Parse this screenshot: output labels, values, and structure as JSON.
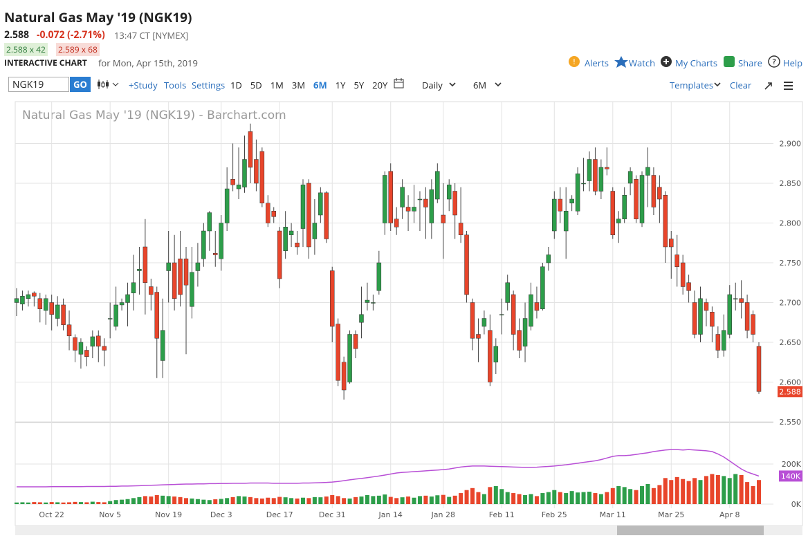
{
  "header": {
    "title": "Natural Gas May '19 (NGK19)",
    "price": "2.588",
    "change": "-0.072 (-2.71%)",
    "time": "13:47 CT [NYMEX]",
    "bid": "2.588 x 42",
    "ask": "2.589 x 68",
    "chart_label": "INTERACTIVE CHART",
    "chart_date": "for Mon, Apr 15th, 2019",
    "links": [
      "Alerts",
      "Watch",
      "My Charts",
      "Share",
      "Help"
    ]
  },
  "toolbar": {
    "symbol": "NGK19",
    "go": "GO",
    "study": "+Study",
    "tools": "Tools",
    "settings": "Settings",
    "periods": [
      "1D",
      "5D",
      "1M",
      "3M",
      "6M",
      "1Y",
      "5Y",
      "20Y"
    ],
    "active_period": "6M",
    "interval": "Daily",
    "range": "6M",
    "templates": "Templates",
    "clear": "Clear"
  },
  "chart_data": {
    "type": "candlestick",
    "title": "Natural Gas May '19 (NGK19) - Barchart.com",
    "up_color": "#2d9e4a",
    "down_color": "#e8452b",
    "grid": true,
    "categories": [
      null,
      null,
      null,
      null,
      null,
      null,
      "Oct 22",
      null,
      null,
      null,
      null,
      null,
      null,
      null,
      null,
      null,
      "Nov 5",
      null,
      null,
      null,
      null,
      null,
      null,
      null,
      null,
      null,
      "Nov 19",
      null,
      null,
      null,
      null,
      null,
      null,
      null,
      null,
      "Dec 3",
      null,
      null,
      null,
      null,
      null,
      null,
      null,
      null,
      null,
      "Dec 17",
      null,
      null,
      null,
      null,
      null,
      null,
      null,
      null,
      "Dec 31",
      null,
      null,
      null,
      null,
      null,
      null,
      null,
      null,
      null,
      "Jan 14",
      null,
      null,
      null,
      null,
      null,
      null,
      null,
      null,
      "Jan 28",
      null,
      null,
      null,
      null,
      null,
      null,
      null,
      null,
      null,
      "Feb 11",
      null,
      null,
      null,
      null,
      null,
      null,
      null,
      null,
      "Feb 25",
      null,
      null,
      null,
      null,
      null,
      null,
      null,
      null,
      null,
      "Mar 11",
      null,
      null,
      null,
      null,
      null,
      null,
      null,
      null,
      null,
      "Mar 25",
      null,
      null,
      null,
      null,
      null,
      null,
      null,
      null,
      null,
      "Apr 8",
      null,
      null,
      null,
      null,
      null
    ],
    "open": [
      2.7,
      2.698,
      2.705,
      2.712,
      2.705,
      2.69,
      2.7,
      2.68,
      2.697,
      2.672,
      2.656,
      2.635,
      2.64,
      2.645,
      2.658,
      2.645,
      2.68,
      2.67,
      2.697,
      2.7,
      2.712,
      2.74,
      2.77,
      2.72,
      2.713,
      2.627,
      2.74,
      2.75,
      2.755,
      2.755,
      2.695,
      2.74,
      2.755,
      2.79,
      2.762,
      2.755,
      2.8,
      2.855,
      2.843,
      2.845,
      2.915,
      2.88,
      2.89,
      2.825,
      2.815,
      2.79,
      2.765,
      2.785,
      2.775,
      2.793,
      2.85,
      2.78,
      2.81,
      2.838,
      2.74,
      2.673,
      2.625,
      2.6,
      2.66,
      2.675,
      2.7,
      2.7,
      2.715,
      2.8,
      2.865,
      2.805,
      2.82,
      2.82,
      2.815,
      2.83,
      2.83,
      2.8,
      2.83,
      2.81,
      2.83,
      2.84,
      2.8,
      2.785,
      2.7,
      2.66,
      2.67,
      2.665,
      2.625,
      2.685,
      2.7,
      2.71,
      2.665,
      2.645,
      2.67,
      2.7,
      2.692,
      2.75,
      2.79,
      2.83,
      2.79,
      2.825,
      2.815,
      2.85,
      2.853,
      2.88,
      2.84,
      2.87,
      2.84,
      2.8,
      2.805,
      2.85,
      2.855,
      2.8,
      2.86,
      2.86,
      2.845,
      2.835,
      2.78,
      2.76,
      2.75,
      2.725,
      2.7,
      2.66,
      2.7,
      2.688,
      2.66,
      2.64,
      2.66,
      2.705,
      2.705,
      2.7,
      2.685,
      2.645
    ],
    "high": [
      2.718,
      2.715,
      2.715,
      2.714,
      2.712,
      2.71,
      2.71,
      2.708,
      2.705,
      2.69,
      2.66,
      2.655,
      2.645,
      2.665,
      2.665,
      2.655,
      2.7,
      2.72,
      2.705,
      2.725,
      2.76,
      2.77,
      2.805,
      2.73,
      2.72,
      2.705,
      2.79,
      2.785,
      2.79,
      2.77,
      2.77,
      2.775,
      2.8,
      2.815,
      2.79,
      2.81,
      2.87,
      2.9,
      2.895,
      2.91,
      2.925,
      2.905,
      2.895,
      2.835,
      2.82,
      2.795,
      2.815,
      2.8,
      2.79,
      2.855,
      2.855,
      2.83,
      2.845,
      2.84,
      2.745,
      2.68,
      2.632,
      2.665,
      2.665,
      2.72,
      2.725,
      2.71,
      2.765,
      2.865,
      2.875,
      2.82,
      2.855,
      2.835,
      2.848,
      2.84,
      2.845,
      2.855,
      2.875,
      2.85,
      2.855,
      2.85,
      2.845,
      2.79,
      2.705,
      2.68,
      2.69,
      2.685,
      2.655,
      2.705,
      2.735,
      2.715,
      2.68,
      2.7,
      2.725,
      2.72,
      2.75,
      2.77,
      2.84,
      2.845,
      2.845,
      2.835,
      2.87,
      2.882,
      2.89,
      2.895,
      2.88,
      2.895,
      2.845,
      2.815,
      2.845,
      2.87,
      2.86,
      2.865,
      2.895,
      2.87,
      2.86,
      2.84,
      2.79,
      2.785,
      2.76,
      2.735,
      2.715,
      2.72,
      2.705,
      2.695,
      2.67,
      2.685,
      2.722,
      2.725,
      2.728,
      2.71,
      2.69,
      2.65
    ],
    "low": [
      2.683,
      2.69,
      2.695,
      2.695,
      2.675,
      2.672,
      2.665,
      2.67,
      2.665,
      2.64,
      2.625,
      2.617,
      2.62,
      2.63,
      2.625,
      2.62,
      2.655,
      2.665,
      2.69,
      2.67,
      2.69,
      2.71,
      2.685,
      2.69,
      2.605,
      2.605,
      2.7,
      2.69,
      2.695,
      2.635,
      2.68,
      2.72,
      2.745,
      2.765,
      2.745,
      2.74,
      2.79,
      2.84,
      2.83,
      2.838,
      2.85,
      2.84,
      2.82,
      2.795,
      2.8,
      2.718,
      2.755,
      2.77,
      2.76,
      2.77,
      2.755,
      2.76,
      2.8,
      2.775,
      2.65,
      2.595,
      2.578,
      2.598,
      2.63,
      2.655,
      2.69,
      2.69,
      2.71,
      2.785,
      2.79,
      2.785,
      2.805,
      2.79,
      2.8,
      2.79,
      2.78,
      2.78,
      2.825,
      2.755,
      2.815,
      2.78,
      2.775,
      2.7,
      2.64,
      2.625,
      2.66,
      2.595,
      2.61,
      2.66,
      2.69,
      2.64,
      2.63,
      2.625,
      2.665,
      2.68,
      2.69,
      2.74,
      2.78,
      2.8,
      2.755,
      2.815,
      2.81,
      2.84,
      2.84,
      2.835,
      2.83,
      2.86,
      2.78,
      2.775,
      2.8,
      2.835,
      2.8,
      2.795,
      2.82,
      2.81,
      2.8,
      2.75,
      2.73,
      2.72,
      2.71,
      2.7,
      2.655,
      2.65,
      2.67,
      2.65,
      2.63,
      2.632,
      2.655,
      2.69,
      2.68,
      2.655,
      2.65,
      2.585
    ],
    "close": [
      2.705,
      2.708,
      2.71,
      2.708,
      2.692,
      2.705,
      2.685,
      2.697,
      2.672,
      2.658,
      2.64,
      2.65,
      2.632,
      2.657,
      2.645,
      2.64,
      2.68,
      2.697,
      2.7,
      2.71,
      2.725,
      2.742,
      2.725,
      2.71,
      2.655,
      2.665,
      2.75,
      2.705,
      2.71,
      2.722,
      2.738,
      2.75,
      2.79,
      2.813,
      2.76,
      2.8,
      2.843,
      2.848,
      2.848,
      2.88,
      2.87,
      2.85,
      2.825,
      2.8,
      2.808,
      2.73,
      2.795,
      2.79,
      2.77,
      2.848,
      2.77,
      2.8,
      2.838,
      2.78,
      2.67,
      2.602,
      2.59,
      2.66,
      2.642,
      2.685,
      2.703,
      2.7,
      2.75,
      2.86,
      2.8,
      2.795,
      2.845,
      2.815,
      2.82,
      2.83,
      2.82,
      2.842,
      2.865,
      2.8,
      2.848,
      2.81,
      2.785,
      2.71,
      2.655,
      2.655,
      2.68,
      2.6,
      2.645,
      2.685,
      2.725,
      2.66,
      2.64,
      2.68,
      2.71,
      2.69,
      2.745,
      2.76,
      2.83,
      2.815,
      2.815,
      2.83,
      2.862,
      2.85,
      2.88,
      2.84,
      2.87,
      2.868,
      2.785,
      2.805,
      2.835,
      2.865,
      2.805,
      2.86,
      2.87,
      2.82,
      2.83,
      2.77,
      2.77,
      2.745,
      2.72,
      2.715,
      2.66,
      2.705,
      2.69,
      2.67,
      2.64,
      2.665,
      2.71,
      2.705,
      2.7,
      2.665,
      2.66,
      2.588
    ],
    "ylim": [
      2.55,
      2.95
    ],
    "yticks": [
      {
        "value": 2.55,
        "label": "2.550"
      },
      {
        "value": 2.6,
        "label": "2.600"
      },
      {
        "value": 2.65,
        "label": "2.650"
      },
      {
        "value": 2.7,
        "label": "2.700"
      },
      {
        "value": 2.75,
        "label": "2.750"
      },
      {
        "value": 2.8,
        "label": "2.800"
      },
      {
        "value": 2.85,
        "label": "2.850"
      },
      {
        "value": 2.9,
        "label": "2.900"
      }
    ],
    "volume": {
      "values": [
        8,
        9,
        8,
        10,
        9,
        8,
        10,
        9,
        8,
        9,
        11,
        10,
        9,
        12,
        10,
        9,
        15,
        20,
        22,
        25,
        30,
        35,
        40,
        38,
        45,
        42,
        40,
        38,
        35,
        30,
        28,
        25,
        22,
        20,
        24,
        26,
        30,
        35,
        40,
        38,
        35,
        30,
        28,
        32,
        30,
        36,
        34,
        30,
        28,
        32,
        30,
        35,
        34,
        38,
        45,
        40,
        30,
        28,
        35,
        38,
        45,
        40,
        42,
        48,
        36,
        30,
        34,
        38,
        32,
        40,
        42,
        38,
        44,
        46,
        36,
        42,
        55,
        70,
        80,
        60,
        50,
        85,
        90,
        75,
        60,
        55,
        50,
        45,
        50,
        40,
        55,
        60,
        70,
        60,
        55,
        65,
        58,
        60,
        62,
        55,
        50,
        60,
        80,
        90,
        85,
        75,
        70,
        90,
        100,
        80,
        95,
        130,
        120,
        135,
        125,
        115,
        130,
        120,
        140,
        150,
        145,
        140,
        130,
        150,
        145,
        110,
        90,
        120
      ],
      "ylim": [
        0,
        400
      ],
      "yticks": [
        {
          "value": 0,
          "label": "0K"
        },
        {
          "value": 200,
          "label": "200K"
        }
      ],
      "average": {
        "color": "#b84fd6",
        "last_label": "140K",
        "values": [
          86,
          86,
          86,
          86,
          86,
          86,
          87,
          87,
          87,
          87,
          87,
          87,
          88,
          88,
          88,
          88,
          89,
          89,
          90,
          90,
          91,
          92,
          93,
          94,
          95,
          96,
          97,
          98,
          99,
          100,
          100,
          101,
          101,
          102,
          102,
          103,
          103,
          104,
          104,
          104,
          105,
          105,
          105,
          105,
          104,
          104,
          104,
          104,
          104,
          105,
          105,
          106,
          107,
          108,
          110,
          113,
          117,
          121,
          125,
          128,
          132,
          136,
          140,
          145,
          150,
          155,
          158,
          160,
          162,
          164,
          166,
          168,
          170,
          172,
          175,
          180,
          185,
          188,
          190,
          190,
          190,
          189,
          188,
          187,
          186,
          185,
          184,
          183,
          183,
          184,
          186,
          188,
          190,
          193,
          196,
          200,
          204,
          208,
          212,
          216,
          222,
          230,
          238,
          242,
          242,
          244,
          248,
          252,
          256,
          262,
          266,
          270,
          272,
          272,
          270,
          272,
          270,
          268,
          266,
          262,
          250,
          235,
          215,
          195,
          175,
          160,
          150,
          140
        ]
      }
    }
  }
}
